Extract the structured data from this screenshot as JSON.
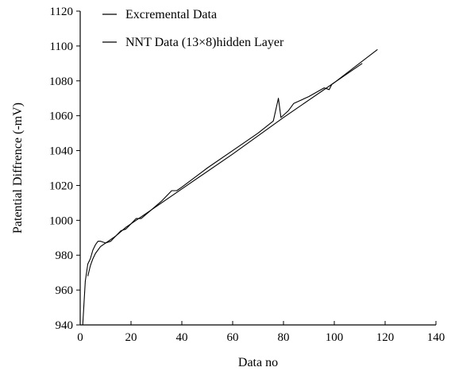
{
  "chart_data": {
    "type": "line",
    "xlabel": "Data no",
    "ylabel": "Patential Diffrence (-mV)",
    "xlim": [
      0,
      140
    ],
    "ylim": [
      940,
      1120
    ],
    "x_ticks": [
      0,
      20,
      40,
      60,
      80,
      100,
      120,
      140
    ],
    "y_ticks": [
      940,
      960,
      980,
      1000,
      1020,
      1040,
      1060,
      1080,
      1100,
      1120
    ],
    "grid": false,
    "legend_position": "top-left",
    "series": [
      {
        "name": "Excremental Data",
        "color": "#000000",
        "x": [
          1,
          2,
          3,
          4,
          5,
          6,
          7,
          8,
          10,
          12,
          14,
          16,
          18,
          20,
          22,
          24,
          28,
          32,
          36,
          38,
          40,
          50,
          60,
          70,
          76,
          78,
          79,
          82,
          84,
          90,
          96,
          98,
          99,
          104,
          111
        ],
        "y": [
          940,
          965,
          975,
          978,
          983,
          986,
          988,
          988,
          987,
          988,
          991,
          994,
          995,
          998,
          1001,
          1001,
          1006,
          1011,
          1017,
          1017,
          1019,
          1030,
          1040,
          1050,
          1057,
          1070,
          1059,
          1063,
          1067,
          1071,
          1076,
          1075,
          1078,
          1083,
          1090
        ]
      },
      {
        "name": "NNT Data (13×8)hidden Layer",
        "color": "#000000",
        "x": [
          3,
          4,
          5,
          6,
          8,
          10,
          14,
          18,
          22,
          30,
          40,
          60,
          80,
          100,
          117
        ],
        "y": [
          968,
          974,
          978,
          981,
          985,
          987,
          991,
          996,
          1000,
          1008,
          1018,
          1038,
          1059,
          1079,
          1098
        ]
      }
    ]
  }
}
